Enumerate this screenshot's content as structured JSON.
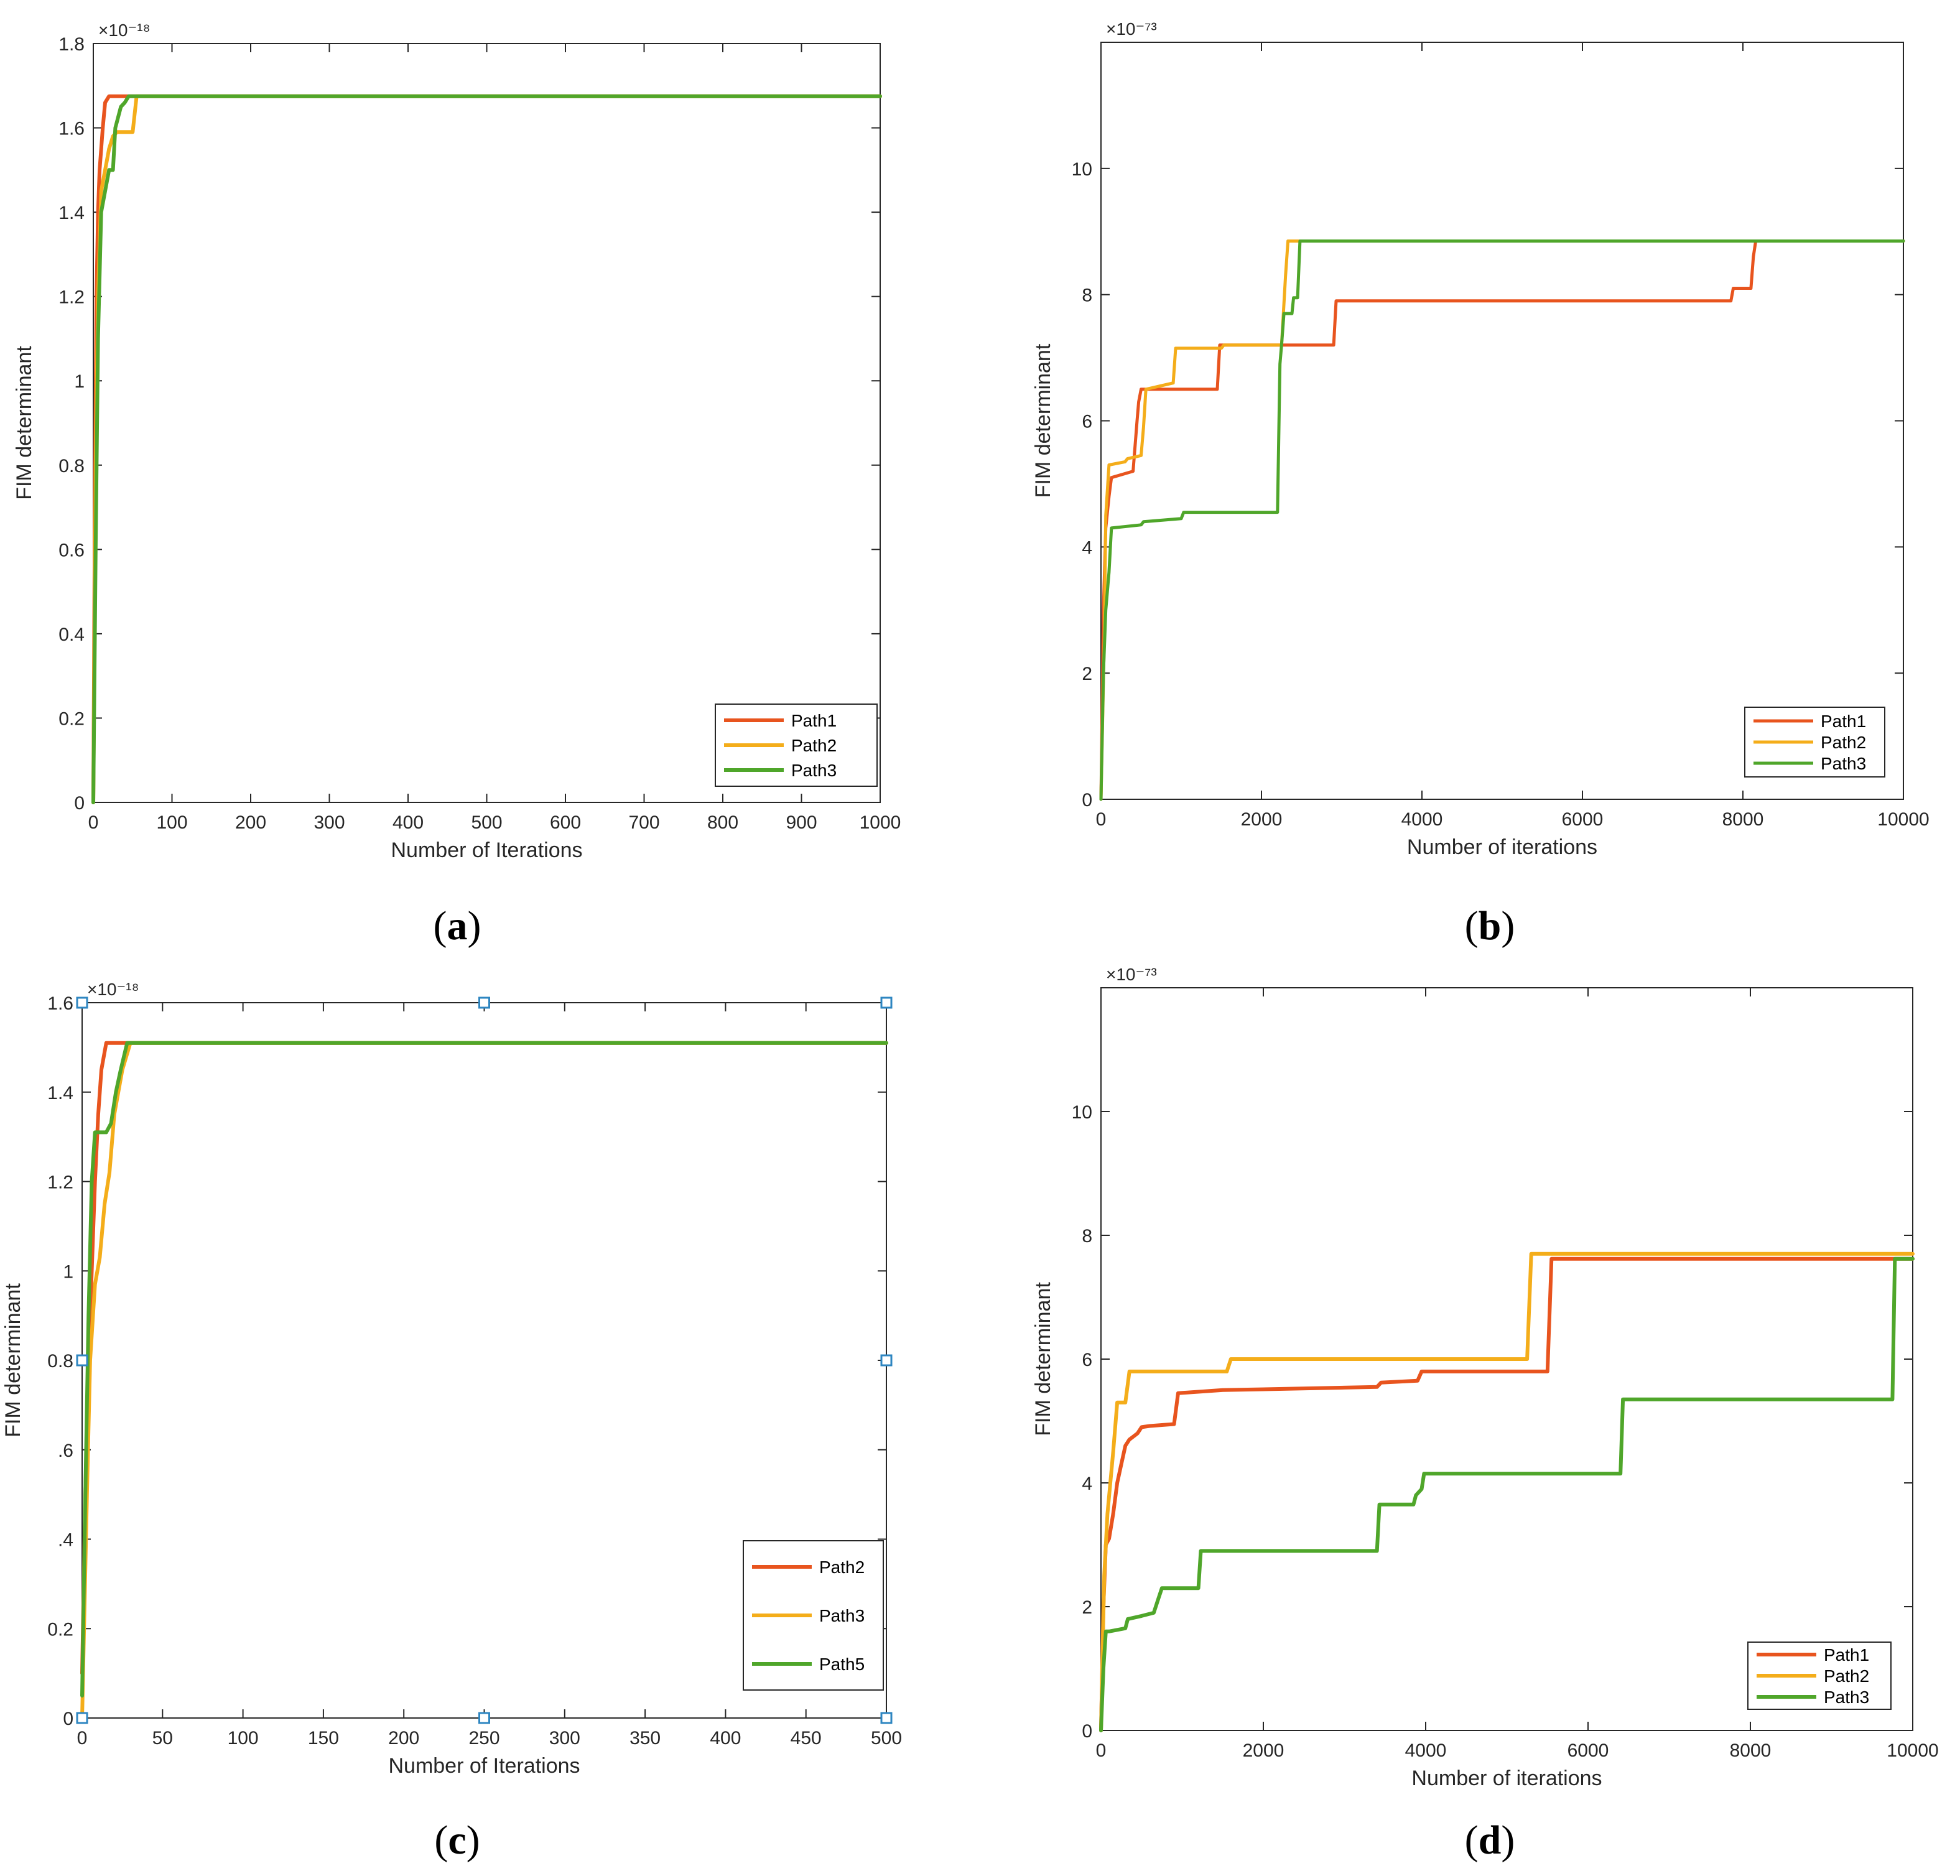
{
  "chart_data": [
    {
      "type": "line",
      "panel": "(a)",
      "panel_letter": "a",
      "xlabel": "Number of Iterations",
      "ylabel": "FIM determinant",
      "exponent_label": "×10⁻¹⁸",
      "xlim": [
        0,
        1000
      ],
      "ylim": [
        0,
        1.8
      ],
      "xticks": [
        0,
        100,
        200,
        300,
        400,
        500,
        600,
        700,
        800,
        900,
        1000
      ],
      "xtick_labels": [
        "0",
        "100",
        "200",
        "300",
        "400",
        "500",
        "600",
        "700",
        "800",
        "900",
        "1000"
      ],
      "yticks": [
        0,
        0.2,
        0.4,
        0.6,
        0.8,
        1,
        1.2,
        1.4,
        1.6,
        1.8
      ],
      "ytick_labels": [
        "0",
        "0.2",
        "0.4",
        "0.6",
        "0.8",
        "1",
        "1.2",
        "1.4",
        "1.6",
        "1.8"
      ],
      "grid": false,
      "legend_position": "bottom-right",
      "series": [
        {
          "name": "Path1",
          "color": "#e8541e",
          "x": [
            0,
            2,
            4,
            6,
            8,
            10,
            12,
            15,
            20,
            30,
            1000
          ],
          "y": [
            0,
            0.7,
            1.2,
            1.4,
            1.5,
            1.55,
            1.6,
            1.66,
            1.675,
            1.675,
            1.675
          ]
        },
        {
          "name": "Path2",
          "color": "#f4ad1a",
          "x": [
            0,
            3,
            6,
            10,
            15,
            20,
            25,
            30,
            50,
            55,
            1000
          ],
          "y": [
            0,
            0.8,
            1.2,
            1.45,
            1.5,
            1.55,
            1.58,
            1.59,
            1.59,
            1.675,
            1.675
          ]
        },
        {
          "name": "Path3",
          "color": "#4fa62a",
          "x": [
            0,
            3,
            6,
            10,
            15,
            20,
            25,
            28,
            35,
            40,
            45,
            1000
          ],
          "y": [
            0,
            0.6,
            1.1,
            1.4,
            1.45,
            1.5,
            1.5,
            1.6,
            1.65,
            1.66,
            1.675,
            1.675
          ]
        }
      ]
    },
    {
      "type": "line",
      "panel": "(b)",
      "panel_letter": "b",
      "xlabel": "Number of iterations",
      "ylabel": "FIM determinant",
      "exponent_label": "×10⁻⁷³",
      "xlim": [
        0,
        10000
      ],
      "ylim": [
        0,
        12
      ],
      "xticks": [
        0,
        2000,
        4000,
        6000,
        8000,
        10000
      ],
      "xtick_labels": [
        "0",
        "2000",
        "4000",
        "6000",
        "8000",
        "10000"
      ],
      "yticks": [
        0,
        2,
        4,
        6,
        8,
        10
      ],
      "ytick_labels": [
        "0",
        "2",
        "4",
        "6",
        "8",
        "10"
      ],
      "grid": false,
      "legend_position": "bottom-right",
      "series": [
        {
          "name": "Path1",
          "color": "#e8541e",
          "x": [
            0,
            30,
            60,
            100,
            130,
            400,
            450,
            470,
            500,
            1450,
            1480,
            2900,
            2930,
            7850,
            7880,
            8100,
            8130,
            8160,
            10000
          ],
          "y": [
            0,
            3.0,
            4.3,
            4.8,
            5.1,
            5.2,
            6.0,
            6.3,
            6.5,
            6.5,
            7.2,
            7.2,
            7.9,
            7.9,
            8.1,
            8.1,
            8.6,
            8.85,
            8.85
          ]
        },
        {
          "name": "Path2",
          "color": "#f4ad1a",
          "x": [
            0,
            40,
            60,
            100,
            300,
            330,
            500,
            530,
            560,
            900,
            930,
            1500,
            1530,
            2250,
            2300,
            2330,
            10000
          ],
          "y": [
            0,
            2.5,
            4.5,
            5.3,
            5.35,
            5.4,
            5.45,
            5.9,
            6.5,
            6.6,
            7.15,
            7.15,
            7.2,
            7.2,
            8.3,
            8.85,
            8.85
          ]
        },
        {
          "name": "Path3",
          "color": "#4fa62a",
          "x": [
            0,
            30,
            60,
            100,
            130,
            500,
            530,
            1000,
            1030,
            2200,
            2230,
            2250,
            2280,
            2380,
            2400,
            2450,
            2480,
            10000
          ],
          "y": [
            0,
            2.0,
            3.0,
            3.6,
            4.3,
            4.35,
            4.4,
            4.45,
            4.55,
            4.55,
            6.9,
            7.2,
            7.7,
            7.7,
            7.95,
            7.95,
            8.85,
            8.85
          ]
        }
      ]
    },
    {
      "type": "line",
      "panel": "(c)",
      "panel_letter": "c",
      "xlabel": "Number of Iterations",
      "ylabel": "FIM determinant",
      "exponent_label": "×10⁻¹⁸",
      "xlim": [
        0,
        500
      ],
      "ylim": [
        0,
        1.6
      ],
      "xticks": [
        0,
        50,
        100,
        150,
        200,
        250,
        300,
        350,
        400,
        450,
        500
      ],
      "xtick_labels": [
        "0",
        "50",
        "100",
        "150",
        "200",
        "250",
        "300",
        "350",
        "400",
        "450",
        "500"
      ],
      "yticks": [
        0,
        0.2,
        0.4,
        0.6,
        0.8,
        1,
        1.2,
        1.4,
        1.6
      ],
      "ytick_labels": [
        "0",
        "0.2",
        ".4",
        ".6",
        "0.8",
        "1",
        "1.2",
        "1.4",
        "1.6"
      ],
      "grid": false,
      "legend_position": "bottom-right",
      "series": [
        {
          "name": "Path2",
          "color": "#e8541e",
          "x": [
            0,
            2,
            4,
            6,
            8,
            10,
            12,
            15,
            20,
            500
          ],
          "y": [
            0.1,
            0.5,
            0.8,
            1.0,
            1.2,
            1.35,
            1.45,
            1.51,
            1.51,
            1.51
          ]
        },
        {
          "name": "Path3",
          "color": "#f4ad1a",
          "x": [
            0,
            3,
            5,
            8,
            11,
            14,
            17,
            20,
            25,
            30,
            500
          ],
          "y": [
            0,
            0.5,
            0.8,
            0.97,
            1.03,
            1.15,
            1.22,
            1.35,
            1.45,
            1.51,
            1.51
          ]
        },
        {
          "name": "Path5",
          "color": "#4fa62a",
          "x": [
            0,
            2,
            4,
            6,
            8,
            15,
            18,
            21,
            24,
            28,
            500
          ],
          "y": [
            0.05,
            0.5,
            0.9,
            1.2,
            1.31,
            1.31,
            1.33,
            1.4,
            1.45,
            1.51,
            1.51
          ]
        }
      ],
      "markers": {
        "color": "#2e86c1",
        "points": [
          [
            0,
            1.6
          ],
          [
            250,
            1.6
          ],
          [
            500,
            1.6
          ],
          [
            0,
            0.8
          ],
          [
            500,
            0.8
          ],
          [
            0,
            0
          ],
          [
            250,
            0
          ],
          [
            500,
            0
          ]
        ]
      }
    },
    {
      "type": "line",
      "panel": "(d)",
      "panel_letter": "d",
      "xlabel": "Number of iterations",
      "ylabel": "FIM determinant",
      "exponent_label": "×10⁻⁷³",
      "xlim": [
        0,
        10000
      ],
      "ylim": [
        0,
        12
      ],
      "xticks": [
        0,
        2000,
        4000,
        6000,
        8000,
        10000
      ],
      "xtick_labels": [
        "0",
        "2000",
        "4000",
        "6000",
        "8000",
        "10000"
      ],
      "yticks": [
        0,
        2,
        4,
        6,
        8,
        10
      ],
      "ytick_labels": [
        "0",
        "2",
        "4",
        "6",
        "8",
        "10"
      ],
      "grid": false,
      "legend_position": "bottom-right",
      "series": [
        {
          "name": "Path1",
          "color": "#e8541e",
          "x": [
            0,
            30,
            60,
            100,
            150,
            200,
            250,
            300,
            350,
            400,
            450,
            500,
            600,
            900,
            950,
            1500,
            3400,
            3450,
            3900,
            3950,
            5500,
            5550,
            10000
          ],
          "y": [
            0,
            2.0,
            3.0,
            3.1,
            3.5,
            4.0,
            4.3,
            4.6,
            4.7,
            4.75,
            4.8,
            4.9,
            4.92,
            4.95,
            5.45,
            5.5,
            5.55,
            5.62,
            5.65,
            5.8,
            5.8,
            7.62,
            7.62
          ]
        },
        {
          "name": "Path2",
          "color": "#f4ad1a",
          "x": [
            0,
            40,
            80,
            150,
            200,
            300,
            350,
            1550,
            1600,
            5250,
            5300,
            10000
          ],
          "y": [
            0,
            2.5,
            3.5,
            4.5,
            5.3,
            5.3,
            5.8,
            5.8,
            6.0,
            6.0,
            7.7,
            7.7
          ]
        },
        {
          "name": "Path3",
          "color": "#4fa62a",
          "x": [
            0,
            30,
            60,
            100,
            300,
            330,
            500,
            650,
            700,
            750,
            1200,
            1230,
            3400,
            3430,
            3850,
            3880,
            3950,
            3980,
            6400,
            6430,
            9750,
            9780,
            10000
          ],
          "y": [
            0,
            1.0,
            1.6,
            1.6,
            1.65,
            1.8,
            1.85,
            1.9,
            2.1,
            2.3,
            2.3,
            2.9,
            2.9,
            3.65,
            3.65,
            3.8,
            3.9,
            4.15,
            4.15,
            5.35,
            5.35,
            7.62,
            7.62
          ]
        }
      ]
    }
  ]
}
